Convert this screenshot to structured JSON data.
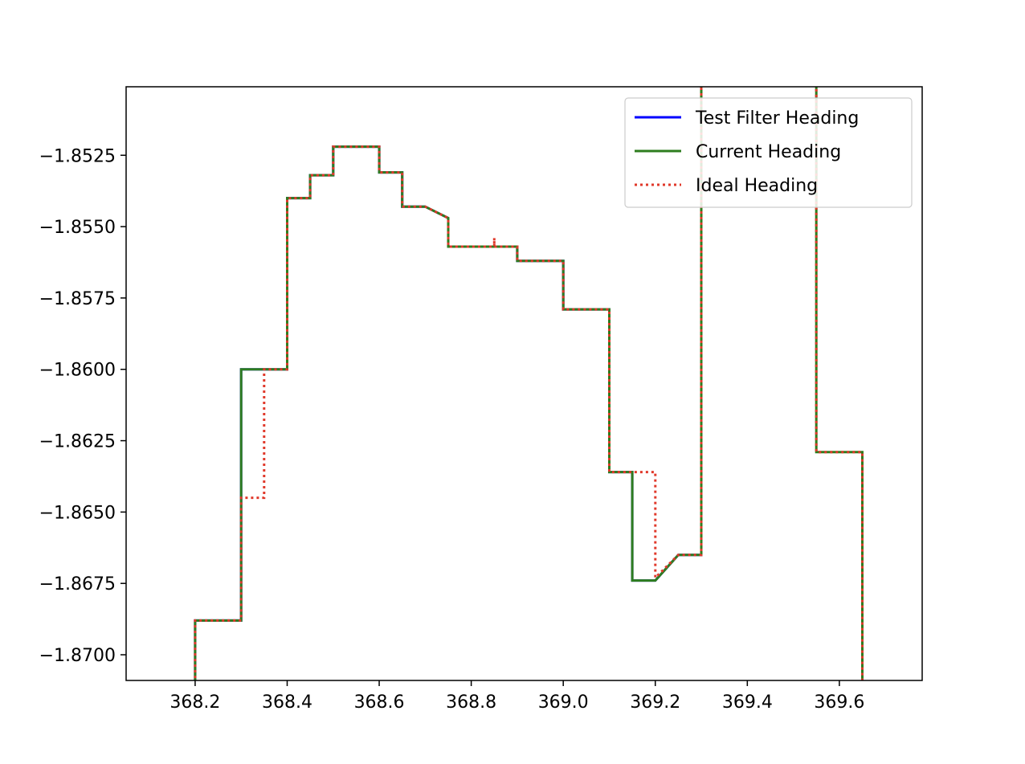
{
  "chart_data": {
    "type": "line",
    "title": "",
    "xlabel": "",
    "ylabel": "",
    "xlim": [
      368.05,
      369.78
    ],
    "ylim": [
      -1.8709,
      -1.8501
    ],
    "x_ticks": [
      368.2,
      368.4,
      368.6,
      368.8,
      369.0,
      369.2,
      369.4,
      369.6
    ],
    "x_tick_labels": [
      "368.2",
      "368.4",
      "368.6",
      "368.8",
      "369.0",
      "369.2",
      "369.4",
      "369.6"
    ],
    "y_ticks": [
      -1.8525,
      -1.855,
      -1.8575,
      -1.86,
      -1.8625,
      -1.865,
      -1.8675,
      -1.87
    ],
    "y_tick_labels": [
      "−1.8525",
      "−1.8550",
      "−1.8575",
      "−1.8600",
      "−1.8625",
      "−1.8650",
      "−1.8675",
      "−1.8700"
    ],
    "grid": false,
    "legend_position": "top-right",
    "series": [
      {
        "name": "Test Filter Heading",
        "color": "#0000ff",
        "style": "solid",
        "x": [
          368.2,
          368.2,
          368.3,
          368.3,
          368.4,
          368.4,
          368.45,
          368.45,
          368.5,
          368.5,
          368.6,
          368.6,
          368.65,
          368.65,
          368.7,
          368.75,
          368.75,
          368.9,
          368.9,
          369.0,
          369.0,
          369.1,
          369.1,
          369.15,
          369.15,
          369.2,
          369.25,
          369.3,
          369.3
        ],
        "y": [
          -1.872,
          -1.8688,
          -1.8688,
          -1.86,
          -1.86,
          -1.854,
          -1.854,
          -1.8532,
          -1.8532,
          -1.8522,
          -1.8522,
          -1.8531,
          -1.8531,
          -1.8543,
          -1.8543,
          -1.8547,
          -1.8557,
          -1.8557,
          -1.8562,
          -1.8562,
          -1.8579,
          -1.8579,
          -1.8636,
          -1.8636,
          -1.8674,
          -1.8674,
          -1.8665,
          -1.8665,
          -1.849
        ]
      },
      {
        "name": "Current Heading",
        "color": "#2e7d1f",
        "style": "solid",
        "x": [
          368.2,
          368.2,
          368.3,
          368.3,
          368.4,
          368.4,
          368.45,
          368.45,
          368.5,
          368.5,
          368.6,
          368.6,
          368.65,
          368.65,
          368.7,
          368.75,
          368.75,
          368.9,
          368.9,
          369.0,
          369.0,
          369.1,
          369.1,
          369.15,
          369.15,
          369.2,
          369.25,
          369.3,
          369.3
        ],
        "y": [
          -1.872,
          -1.8688,
          -1.8688,
          -1.86,
          -1.86,
          -1.854,
          -1.854,
          -1.8532,
          -1.8532,
          -1.8522,
          -1.8522,
          -1.8531,
          -1.8531,
          -1.8543,
          -1.8543,
          -1.8547,
          -1.8557,
          -1.8557,
          -1.8562,
          -1.8562,
          -1.8579,
          -1.8579,
          -1.8636,
          -1.8636,
          -1.8674,
          -1.8674,
          -1.8665,
          -1.8665,
          -1.849
        ]
      },
      {
        "name": "Ideal Heading",
        "color": "#e0392b",
        "style": "dotted",
        "x": [
          368.2,
          368.2,
          368.3,
          368.3,
          368.35,
          368.35,
          368.4,
          368.4,
          368.45,
          368.45,
          368.5,
          368.5,
          368.6,
          368.6,
          368.65,
          368.65,
          368.7,
          368.75,
          368.75,
          368.85,
          368.85,
          368.85,
          368.9,
          368.9,
          369.0,
          369.0,
          369.1,
          369.1,
          369.2,
          369.2,
          369.25,
          369.3,
          369.3
        ],
        "y": [
          -1.872,
          -1.8688,
          -1.8688,
          -1.8645,
          -1.8645,
          -1.86,
          -1.86,
          -1.854,
          -1.854,
          -1.8532,
          -1.8532,
          -1.8522,
          -1.8522,
          -1.8531,
          -1.8531,
          -1.8543,
          -1.8543,
          -1.8547,
          -1.8557,
          -1.8557,
          -1.8554,
          -1.8557,
          -1.8557,
          -1.8562,
          -1.8562,
          -1.8579,
          -1.8579,
          -1.8636,
          -1.8636,
          -1.8673,
          -1.8665,
          -1.8665,
          -1.849
        ]
      }
    ],
    "extra_segments": [
      {
        "series": "Current Heading",
        "x": [
          369.55,
          369.55,
          369.65,
          369.65
        ],
        "y": [
          -1.849,
          -1.8629,
          -1.8629,
          -1.872
        ]
      },
      {
        "series": "Ideal Heading",
        "x": [
          369.55,
          369.55,
          369.65,
          369.65
        ],
        "y": [
          -1.849,
          -1.8629,
          -1.8629,
          -1.872
        ]
      }
    ]
  }
}
